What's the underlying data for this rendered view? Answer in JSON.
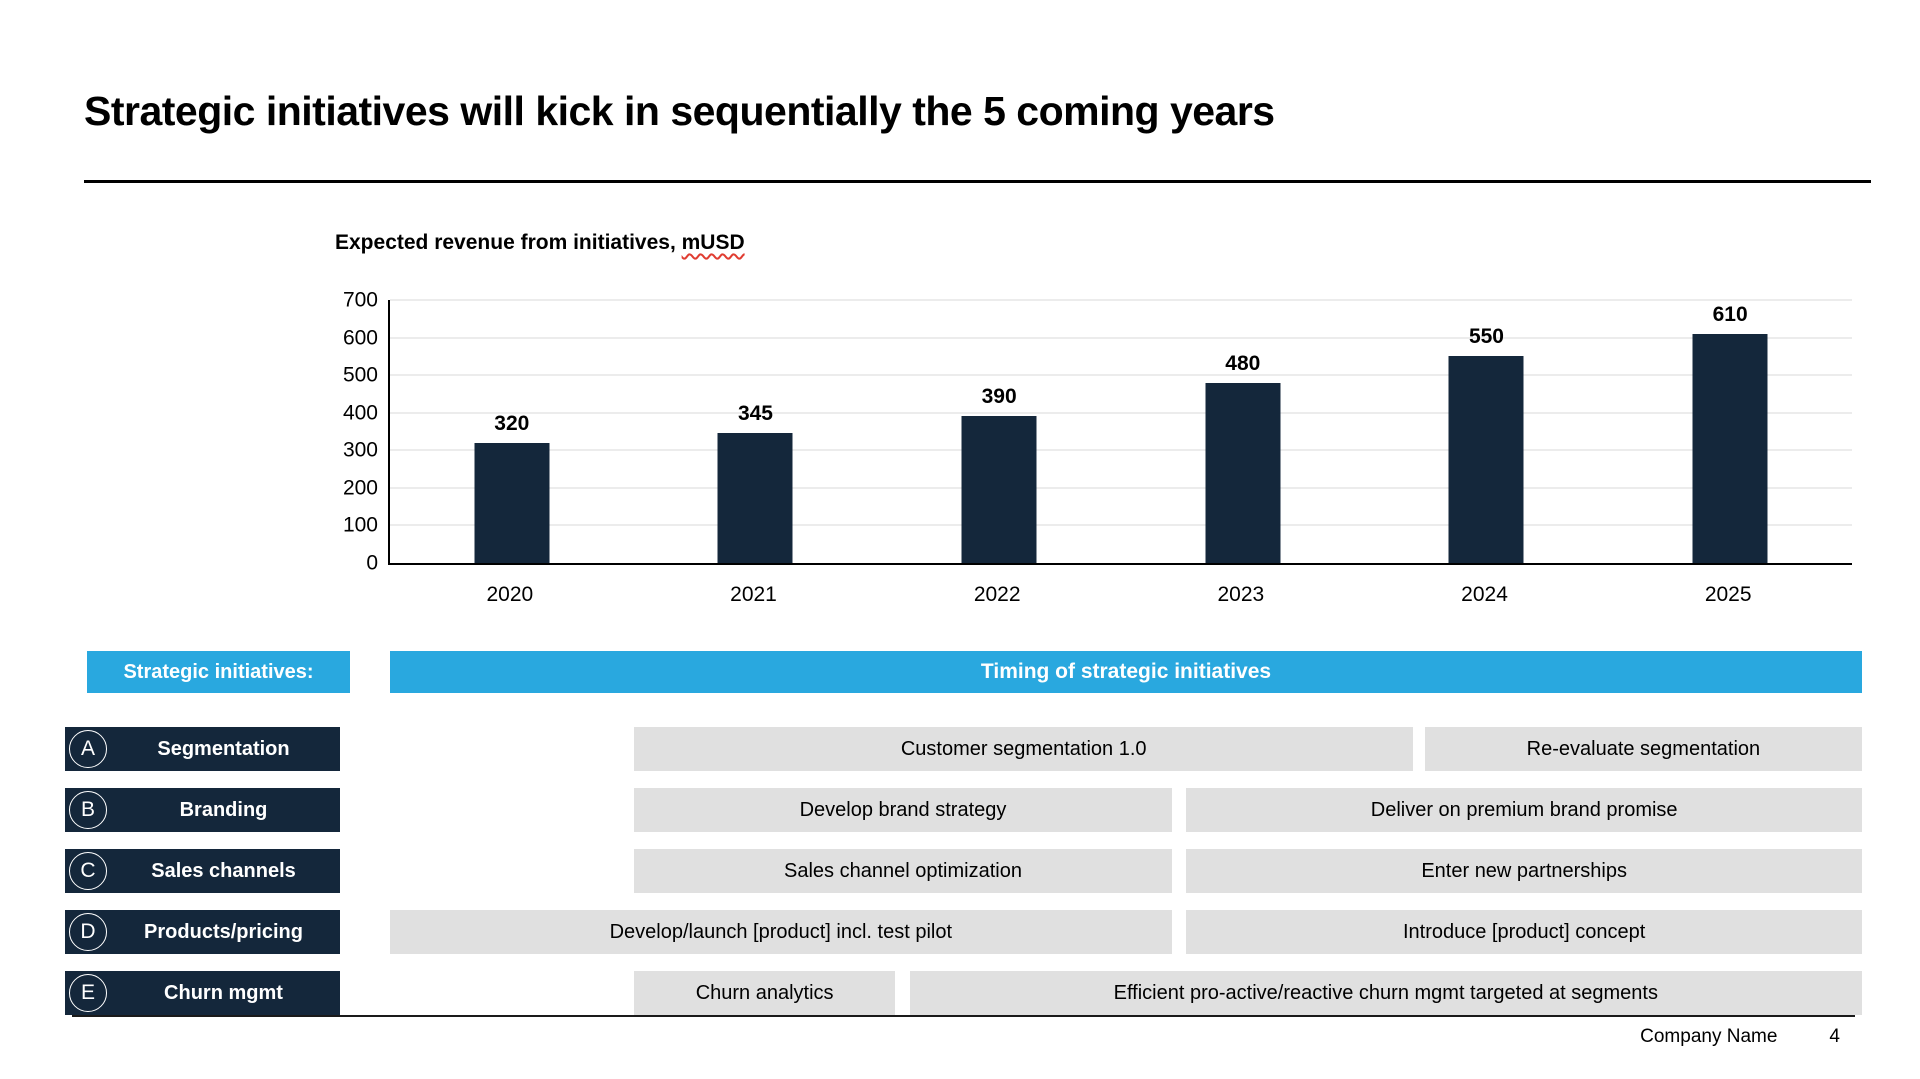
{
  "page": {
    "title": "Strategic initiatives will kick in sequentially the 5 coming years",
    "footer": {
      "company_name": "Company Name",
      "page_number": "4"
    }
  },
  "chart_data": {
    "type": "bar",
    "title": "Expected revenue from initiatives, mUSD",
    "title_prefix": "Expected revenue from initiatives, ",
    "title_unit": "mUSD",
    "categories": [
      "2020",
      "2021",
      "2022",
      "2023",
      "2024",
      "2025"
    ],
    "values": [
      320,
      345,
      390,
      480,
      550,
      610
    ],
    "xlabel": "",
    "ylabel": "",
    "ylim": [
      0,
      700
    ],
    "ytick_step": 100,
    "yticks": [
      0,
      100,
      200,
      300,
      400,
      500,
      600,
      700
    ],
    "grid": true,
    "legend": "none",
    "data_labels": true,
    "bar_color": "#14273B"
  },
  "timeline": {
    "left_header": "Strategic initiatives:",
    "header": "Timing of strategic initiatives",
    "rows": [
      {
        "letter": "A",
        "label": "Segmentation",
        "bars": [
          {
            "text": "Customer segmentation 1.0",
            "left_pct": 16.6,
            "width_pct": 52.9
          },
          {
            "text": "Re-evaluate segmentation",
            "left_pct": 70.3,
            "width_pct": 29.7
          }
        ]
      },
      {
        "letter": "B",
        "label": "Branding",
        "bars": [
          {
            "text": "Develop brand strategy",
            "left_pct": 16.6,
            "width_pct": 36.5
          },
          {
            "text": "Deliver on premium brand promise",
            "left_pct": 54.1,
            "width_pct": 45.9
          }
        ]
      },
      {
        "letter": "C",
        "label": "Sales channels",
        "bars": [
          {
            "text": "Sales channel optimization",
            "left_pct": 16.6,
            "width_pct": 36.5
          },
          {
            "text": "Enter new partnerships",
            "left_pct": 54.1,
            "width_pct": 45.9
          }
        ]
      },
      {
        "letter": "D",
        "label": "Products/pricing",
        "bars": [
          {
            "text": "Develop/launch [product] incl. test pilot",
            "left_pct": 0,
            "width_pct": 53.1
          },
          {
            "text": "Introduce [product] concept",
            "left_pct": 54.1,
            "width_pct": 45.9
          }
        ]
      },
      {
        "letter": "E",
        "label": "Churn mgmt",
        "bars": [
          {
            "text": "Churn analytics",
            "left_pct": 16.6,
            "width_pct": 17.7
          },
          {
            "text": "Efficient pro-active/reactive churn mgmt targeted at segments",
            "left_pct": 35.3,
            "width_pct": 64.7
          }
        ]
      }
    ]
  },
  "colors": {
    "navy": "#14273B",
    "blue": "#29A8DF",
    "bar_gray": "#E0E0E0",
    "grid_gray": "#D8D8D8",
    "spellcheck_red": "#E03C31"
  }
}
